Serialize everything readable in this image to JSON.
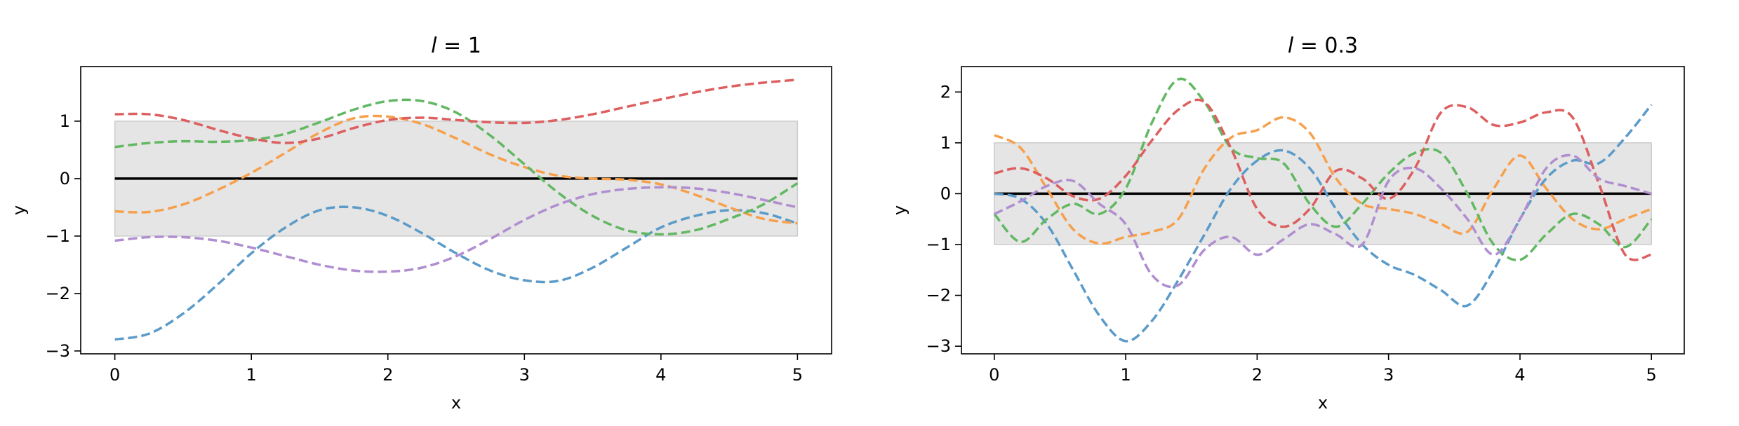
{
  "chart_data": [
    {
      "type": "line",
      "title": "l = 1",
      "title_var": "l",
      "title_rest": " = 1",
      "xlabel": "x",
      "ylabel": "y",
      "xlim": [
        -0.25,
        5.25
      ],
      "ylim": [
        -3.05,
        1.95
      ],
      "xticks": [
        0,
        1,
        2,
        3,
        4,
        5
      ],
      "yticks": [
        -3,
        -2,
        -1,
        0,
        1
      ],
      "band": {
        "x": [
          0,
          5
        ],
        "y": [
          -1,
          1
        ],
        "color": "#e5e5e5",
        "edge": "#cccccc"
      },
      "mean": {
        "x": [
          0,
          5
        ],
        "y": [
          0,
          0
        ],
        "color": "#000000"
      },
      "series": [
        {
          "color": "#5b9bc9",
          "x": [
            0,
            0.25,
            0.5,
            0.75,
            1,
            1.25,
            1.5,
            1.75,
            2,
            2.25,
            2.5,
            2.75,
            3,
            3.25,
            3.5,
            3.75,
            4,
            4.25,
            4.5,
            4.75,
            5
          ],
          "y": [
            -2.8,
            -2.7,
            -2.35,
            -1.85,
            -1.3,
            -0.85,
            -0.55,
            -0.5,
            -0.65,
            -0.95,
            -1.3,
            -1.6,
            -1.77,
            -1.78,
            -1.55,
            -1.2,
            -0.85,
            -0.65,
            -0.55,
            -0.6,
            -0.78
          ]
        },
        {
          "color": "#f7a04c",
          "x": [
            0,
            0.25,
            0.5,
            0.75,
            1,
            1.25,
            1.5,
            1.75,
            2,
            2.25,
            2.5,
            2.75,
            3,
            3.25,
            3.5,
            3.75,
            4,
            4.25,
            4.5,
            4.75,
            5
          ],
          "y": [
            -0.57,
            -0.58,
            -0.45,
            -0.2,
            0.1,
            0.45,
            0.8,
            1.05,
            1.08,
            0.95,
            0.7,
            0.42,
            0.2,
            0.05,
            0,
            -0.02,
            -0.1,
            -0.28,
            -0.5,
            -0.7,
            -0.78
          ]
        },
        {
          "color": "#62b862",
          "x": [
            0,
            0.25,
            0.5,
            0.75,
            1,
            1.25,
            1.5,
            1.75,
            2,
            2.25,
            2.5,
            2.75,
            3,
            3.25,
            3.5,
            3.75,
            4,
            4.25,
            4.5,
            4.75,
            5
          ],
          "y": [
            0.55,
            0.62,
            0.65,
            0.64,
            0.67,
            0.78,
            0.98,
            1.2,
            1.35,
            1.35,
            1.15,
            0.75,
            0.25,
            -0.25,
            -0.65,
            -0.9,
            -0.97,
            -0.9,
            -0.7,
            -0.45,
            -0.08
          ]
        },
        {
          "color": "#dd5f5f",
          "x": [
            0,
            0.25,
            0.5,
            0.75,
            1,
            1.25,
            1.5,
            1.75,
            2,
            2.25,
            2.5,
            2.75,
            3,
            3.25,
            3.5,
            3.75,
            4,
            4.25,
            4.5,
            4.75,
            5
          ],
          "y": [
            1.12,
            1.12,
            1.02,
            0.85,
            0.7,
            0.62,
            0.7,
            0.88,
            1.02,
            1.06,
            1.02,
            0.98,
            0.97,
            1.02,
            1.12,
            1.25,
            1.38,
            1.5,
            1.6,
            1.67,
            1.72
          ]
        },
        {
          "color": "#b08ed0",
          "x": [
            0,
            0.25,
            0.5,
            0.75,
            1,
            1.25,
            1.5,
            1.75,
            2,
            2.25,
            2.5,
            2.75,
            3,
            3.25,
            3.5,
            3.75,
            4,
            4.25,
            4.5,
            4.75,
            5
          ],
          "y": [
            -1.08,
            -1.02,
            -1.02,
            -1.08,
            -1.2,
            -1.35,
            -1.5,
            -1.6,
            -1.62,
            -1.55,
            -1.35,
            -1.05,
            -0.72,
            -0.45,
            -0.27,
            -0.18,
            -0.15,
            -0.17,
            -0.25,
            -0.37,
            -0.5
          ]
        }
      ]
    },
    {
      "type": "line",
      "title": "l = 0.3",
      "title_var": "l",
      "title_rest": " = 0.3",
      "xlabel": "x",
      "ylabel": "y",
      "xlim": [
        -0.25,
        5.25
      ],
      "ylim": [
        -3.15,
        2.5
      ],
      "xticks": [
        0,
        1,
        2,
        3,
        4,
        5
      ],
      "yticks": [
        -3,
        -2,
        -1,
        0,
        1,
        2
      ],
      "band": {
        "x": [
          0,
          5
        ],
        "y": [
          -1,
          1
        ],
        "color": "#e5e5e5",
        "edge": "#cccccc"
      },
      "mean": {
        "x": [
          0,
          5
        ],
        "y": [
          0,
          0
        ],
        "color": "#000000"
      },
      "series": [
        {
          "color": "#5b9bc9",
          "x": [
            0,
            0.2,
            0.4,
            0.6,
            0.8,
            1.0,
            1.2,
            1.4,
            1.6,
            1.8,
            2.0,
            2.2,
            2.4,
            2.6,
            2.8,
            3.0,
            3.2,
            3.4,
            3.6,
            3.8,
            4.0,
            4.2,
            4.4,
            4.6,
            4.8,
            5.0
          ],
          "y": [
            0,
            -0.1,
            -0.6,
            -1.5,
            -2.4,
            -2.9,
            -2.5,
            -1.7,
            -0.8,
            0.1,
            0.65,
            0.85,
            0.5,
            -0.3,
            -1.0,
            -1.4,
            -1.6,
            -1.9,
            -2.2,
            -1.5,
            -0.5,
            0.3,
            0.65,
            0.6,
            1.1,
            1.75
          ]
        },
        {
          "color": "#f7a04c",
          "x": [
            0,
            0.2,
            0.4,
            0.6,
            0.8,
            1.0,
            1.2,
            1.4,
            1.6,
            1.8,
            2.0,
            2.2,
            2.4,
            2.6,
            2.8,
            3.0,
            3.2,
            3.4,
            3.6,
            3.8,
            4.0,
            4.2,
            4.4,
            4.6,
            4.8,
            5.0
          ],
          "y": [
            1.15,
            0.9,
            0.1,
            -0.7,
            -0.98,
            -0.85,
            -0.75,
            -0.5,
            0.5,
            1.1,
            1.25,
            1.5,
            1.2,
            0.3,
            -0.2,
            -0.3,
            -0.4,
            -0.6,
            -0.75,
            0.1,
            0.75,
            0.1,
            -0.5,
            -0.7,
            -0.5,
            -0.3
          ]
        },
        {
          "color": "#62b862",
          "x": [
            0,
            0.2,
            0.4,
            0.6,
            0.8,
            1.0,
            1.2,
            1.4,
            1.6,
            1.8,
            2.0,
            2.2,
            2.4,
            2.6,
            2.8,
            3.0,
            3.2,
            3.4,
            3.6,
            3.8,
            4.0,
            4.2,
            4.4,
            4.6,
            4.8,
            5.0
          ],
          "y": [
            -0.4,
            -0.95,
            -0.5,
            -0.2,
            -0.4,
            0.1,
            1.4,
            2.25,
            1.8,
            0.9,
            0.7,
            0.6,
            -0.2,
            -0.65,
            -0.2,
            0.4,
            0.8,
            0.8,
            0,
            -1.0,
            -1.3,
            -0.8,
            -0.4,
            -0.6,
            -1.05,
            -0.5
          ]
        },
        {
          "color": "#dd5f5f",
          "x": [
            0,
            0.2,
            0.4,
            0.6,
            0.8,
            1.0,
            1.2,
            1.4,
            1.6,
            1.8,
            2.0,
            2.2,
            2.4,
            2.6,
            2.8,
            3.0,
            3.2,
            3.4,
            3.6,
            3.8,
            4.0,
            4.2,
            4.4,
            4.6,
            4.8,
            5.0
          ],
          "y": [
            0.4,
            0.5,
            0.3,
            -0.05,
            -0.1,
            0.35,
            1.05,
            1.65,
            1.8,
            0.9,
            -0.3,
            -0.65,
            -0.3,
            0.45,
            0.3,
            -0.1,
            0.5,
            1.6,
            1.7,
            1.35,
            1.4,
            1.6,
            1.5,
            0.2,
            -1.2,
            -1.2
          ]
        },
        {
          "color": "#b08ed0",
          "x": [
            0,
            0.2,
            0.4,
            0.6,
            0.8,
            1.0,
            1.2,
            1.4,
            1.6,
            1.8,
            2.0,
            2.2,
            2.4,
            2.6,
            2.8,
            3.0,
            3.2,
            3.4,
            3.6,
            3.8,
            4.0,
            4.2,
            4.4,
            4.6,
            4.8,
            5.0
          ],
          "y": [
            -0.4,
            -0.15,
            0.15,
            0.25,
            -0.2,
            -0.6,
            -1.6,
            -1.8,
            -1.1,
            -0.85,
            -1.2,
            -0.9,
            -0.6,
            -0.8,
            -1.0,
            0.25,
            0.5,
            0.1,
            -0.5,
            -1.2,
            -0.5,
            0.5,
            0.75,
            0.3,
            0.15,
            0.0
          ]
        }
      ]
    }
  ]
}
